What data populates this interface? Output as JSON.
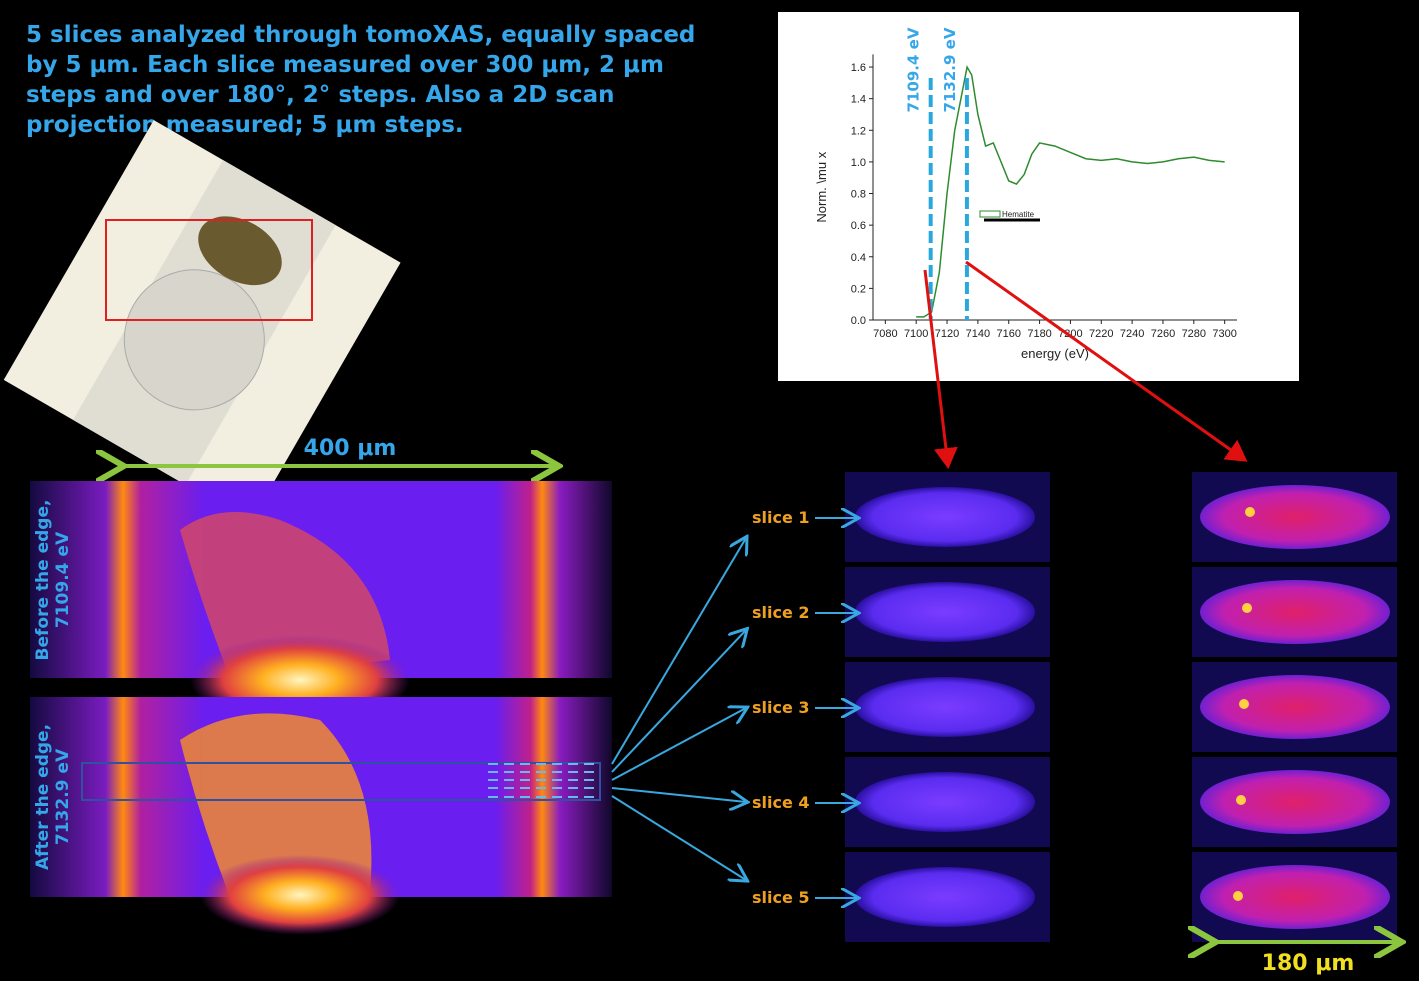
{
  "intro": [
    "5 slices analyzed through tomoXAS, equally spaced",
    "by 5 μm. Each slice measured over 300 μm, 2 μm",
    "steps and over 180°, 2° steps. Also a 2D scan",
    "projection measured; 5 μm steps."
  ],
  "scale_bars": {
    "projection": "400 μm",
    "slice": "180 μm"
  },
  "projection_labels": {
    "before": [
      "Before the edge,",
      "7109.4 eV"
    ],
    "after": [
      "After the edge,",
      "7132.9 eV"
    ]
  },
  "slices": [
    "slice 1",
    "slice 2",
    "slice 3",
    "slice 4",
    "slice 5"
  ],
  "chart_data": {
    "type": "line",
    "xlabel": "energy (eV)",
    "ylabel": "Norm. \\mu x",
    "x": [
      7100,
      7105,
      7110,
      7115,
      7120,
      7125,
      7130,
      7133,
      7136,
      7140,
      7145,
      7150,
      7155,
      7160,
      7165,
      7170,
      7175,
      7180,
      7190,
      7200,
      7210,
      7220,
      7230,
      7240,
      7250,
      7260,
      7270,
      7280,
      7290,
      7300
    ],
    "series": [
      {
        "name": "Hematite",
        "color": "#2e8b2e",
        "values": [
          0.02,
          0.02,
          0.05,
          0.3,
          0.8,
          1.2,
          1.45,
          1.6,
          1.55,
          1.3,
          1.1,
          1.12,
          1.0,
          0.88,
          0.86,
          0.92,
          1.05,
          1.12,
          1.1,
          1.06,
          1.02,
          1.01,
          1.02,
          1.0,
          0.99,
          1.0,
          1.02,
          1.03,
          1.01,
          1.0
        ]
      }
    ],
    "xlim": [
      7072,
      7308
    ],
    "ylim": [
      0,
      1.68
    ],
    "xticks": [
      7080,
      7100,
      7120,
      7140,
      7160,
      7180,
      7200,
      7220,
      7240,
      7260,
      7280,
      7300
    ],
    "yticks": [
      {
        "value": 0,
        "label": "0.0"
      },
      0.2,
      0.4,
      0.6,
      0.8,
      {
        "value": 1,
        "label": "1.0"
      },
      1.2,
      1.4,
      1.6
    ],
    "annotations": [
      {
        "value": 7109.4,
        "label": "7109.4 eV"
      },
      {
        "value": 7132.9,
        "label": "7132.9 eV"
      }
    ]
  }
}
